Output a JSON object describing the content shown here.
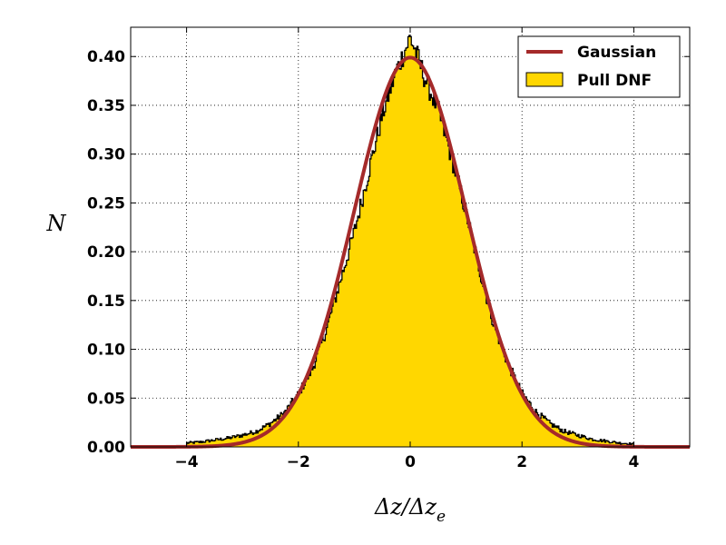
{
  "chart_data": {
    "type": "area",
    "title": "",
    "xlabel": "Δz/Δz",
    "xlabel_subscript": "e",
    "ylabel": "N",
    "xlim": [
      -5,
      5
    ],
    "ylim": [
      0,
      0.43
    ],
    "xticks": [
      -4,
      -2,
      0,
      2,
      4
    ],
    "xtick_labels": [
      "−4",
      "−2",
      "0",
      "2",
      "4"
    ],
    "yticks": [
      0.0,
      0.05,
      0.1,
      0.15,
      0.2,
      0.25,
      0.3,
      0.35,
      0.4
    ],
    "ytick_labels": [
      "0.00",
      "0.05",
      "0.10",
      "0.15",
      "0.20",
      "0.25",
      "0.30",
      "0.35",
      "0.40"
    ],
    "grid": true,
    "legend_position": "top-right",
    "series": [
      {
        "name": "Gaussian",
        "kind": "line",
        "color": "#a52a2a",
        "mean": 0,
        "sigma": 1,
        "x": [
          -5.0,
          -4.5,
          -4.0,
          -3.5,
          -3.0,
          -2.5,
          -2.0,
          -1.75,
          -1.5,
          -1.25,
          -1.0,
          -0.75,
          -0.5,
          -0.25,
          0.0,
          0.25,
          0.5,
          0.75,
          1.0,
          1.25,
          1.5,
          1.75,
          2.0,
          2.5,
          3.0,
          3.5,
          4.0,
          4.5,
          5.0
        ],
        "y": [
          0.0,
          0.0,
          0.0001,
          0.0009,
          0.0044,
          0.0175,
          0.054,
          0.0863,
          0.1295,
          0.1826,
          0.242,
          0.3011,
          0.3521,
          0.3867,
          0.3989,
          0.3867,
          0.3521,
          0.3011,
          0.242,
          0.1826,
          0.1295,
          0.0863,
          0.054,
          0.0175,
          0.0044,
          0.0009,
          0.0001,
          0.0,
          0.0
        ]
      },
      {
        "name": "Pull DNF",
        "kind": "histogram",
        "color": "#ffd700",
        "edge_color": "#000000",
        "range": [
          -4,
          4
        ],
        "x": [
          -4.0,
          -3.75,
          -3.5,
          -3.25,
          -3.0,
          -2.75,
          -2.5,
          -2.25,
          -2.0,
          -1.75,
          -1.5,
          -1.25,
          -1.0,
          -0.75,
          -0.5,
          -0.25,
          -0.1,
          0.0,
          0.1,
          0.25,
          0.5,
          0.75,
          1.0,
          1.25,
          1.5,
          1.75,
          2.0,
          2.25,
          2.5,
          2.75,
          3.0,
          3.25,
          3.5,
          3.75,
          4.0
        ],
        "y": [
          0.004,
          0.005,
          0.007,
          0.009,
          0.012,
          0.016,
          0.024,
          0.035,
          0.054,
          0.08,
          0.12,
          0.17,
          0.22,
          0.28,
          0.34,
          0.385,
          0.405,
          0.42,
          0.405,
          0.38,
          0.345,
          0.295,
          0.24,
          0.18,
          0.125,
          0.085,
          0.055,
          0.036,
          0.024,
          0.016,
          0.012,
          0.008,
          0.006,
          0.004,
          0.003
        ]
      }
    ]
  }
}
